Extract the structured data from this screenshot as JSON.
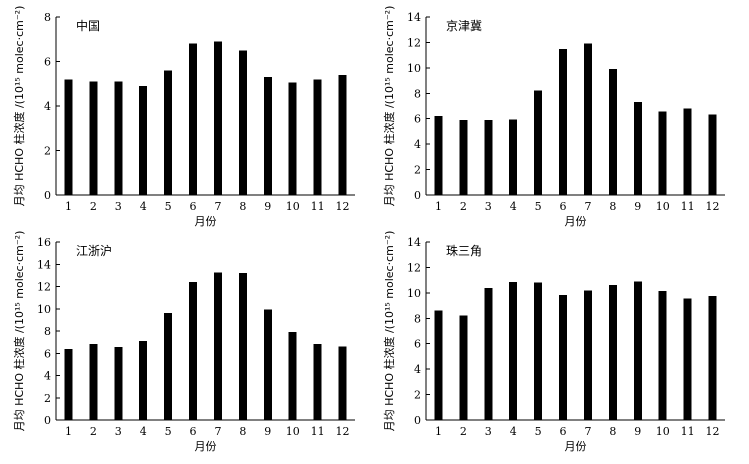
{
  "chart_data": [
    {
      "type": "bar",
      "title": "中国",
      "xlabel": "月份",
      "ylabel": "月均 HCHO 柱浓度 /(10¹⁵ molec·cm⁻²)",
      "categories": [
        "1",
        "2",
        "3",
        "4",
        "5",
        "6",
        "7",
        "8",
        "9",
        "10",
        "11",
        "12"
      ],
      "values": [
        5.2,
        5.1,
        5.1,
        4.9,
        5.6,
        6.8,
        6.9,
        6.5,
        5.3,
        5.05,
        5.2,
        5.4
      ],
      "ylim": [
        0,
        8
      ],
      "yticks": [
        "0",
        "2",
        "4",
        "6",
        "8"
      ],
      "color": "#000000"
    },
    {
      "type": "bar",
      "title": "京津冀",
      "xlabel": "月份",
      "ylabel": "月均 HCHO 柱浓度 /(10¹⁵ molec·cm⁻²)",
      "categories": [
        "1",
        "2",
        "3",
        "4",
        "5",
        "6",
        "7",
        "8",
        "9",
        "10",
        "11",
        "12"
      ],
      "values": [
        6.2,
        5.9,
        5.9,
        5.95,
        8.2,
        11.5,
        11.9,
        9.9,
        7.3,
        6.55,
        6.8,
        6.35
      ],
      "ylim": [
        0,
        14
      ],
      "yticks": [
        "0",
        "2",
        "4",
        "6",
        "8",
        "10",
        "12",
        "14"
      ],
      "color": "#000000"
    },
    {
      "type": "bar",
      "title": "江浙沪",
      "xlabel": "月份",
      "ylabel": "月均 HCHO 柱浓度 /(10¹⁵ molec·cm⁻²)",
      "categories": [
        "1",
        "2",
        "3",
        "4",
        "5",
        "6",
        "7",
        "8",
        "9",
        "10",
        "11",
        "12"
      ],
      "values": [
        6.4,
        6.85,
        6.55,
        7.1,
        9.6,
        12.4,
        13.25,
        13.2,
        9.95,
        7.9,
        6.85,
        6.6
      ],
      "ylim": [
        0,
        16
      ],
      "yticks": [
        "0",
        "2",
        "4",
        "6",
        "8",
        "10",
        "12",
        "14",
        "16"
      ],
      "color": "#000000"
    },
    {
      "type": "bar",
      "title": "珠三角",
      "xlabel": "月份",
      "ylabel": "月均 HCHO 柱浓度 /(10¹⁵ molec·cm⁻²)",
      "categories": [
        "1",
        "2",
        "3",
        "4",
        "5",
        "6",
        "7",
        "8",
        "9",
        "10",
        "11",
        "12"
      ],
      "values": [
        8.6,
        8.2,
        10.4,
        10.85,
        10.8,
        9.85,
        10.2,
        10.6,
        10.9,
        10.15,
        9.55,
        9.75
      ],
      "ylim": [
        0,
        14
      ],
      "yticks": [
        "0",
        "2",
        "4",
        "6",
        "8",
        "10",
        "12",
        "14"
      ],
      "color": "#000000"
    }
  ]
}
